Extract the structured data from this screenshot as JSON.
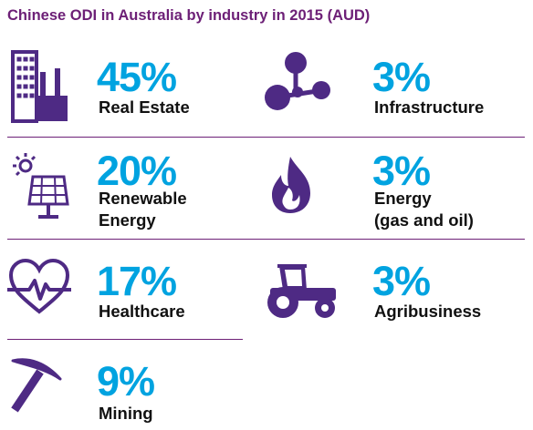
{
  "title": "Chinese ODI in Australia by industry in 2015 (AUD)",
  "items": [
    {
      "value": "45%",
      "label": "Real Estate"
    },
    {
      "value": "3%",
      "label": "Infrastructure"
    },
    {
      "value": "20%",
      "label": "Renewable\nEnergy"
    },
    {
      "value": "3%",
      "label": "Energy\n(gas and oil)"
    },
    {
      "value": "17%",
      "label": "Healthcare"
    },
    {
      "value": "3%",
      "label": "Agribusiness"
    },
    {
      "value": "9%",
      "label": "Mining"
    }
  ]
}
